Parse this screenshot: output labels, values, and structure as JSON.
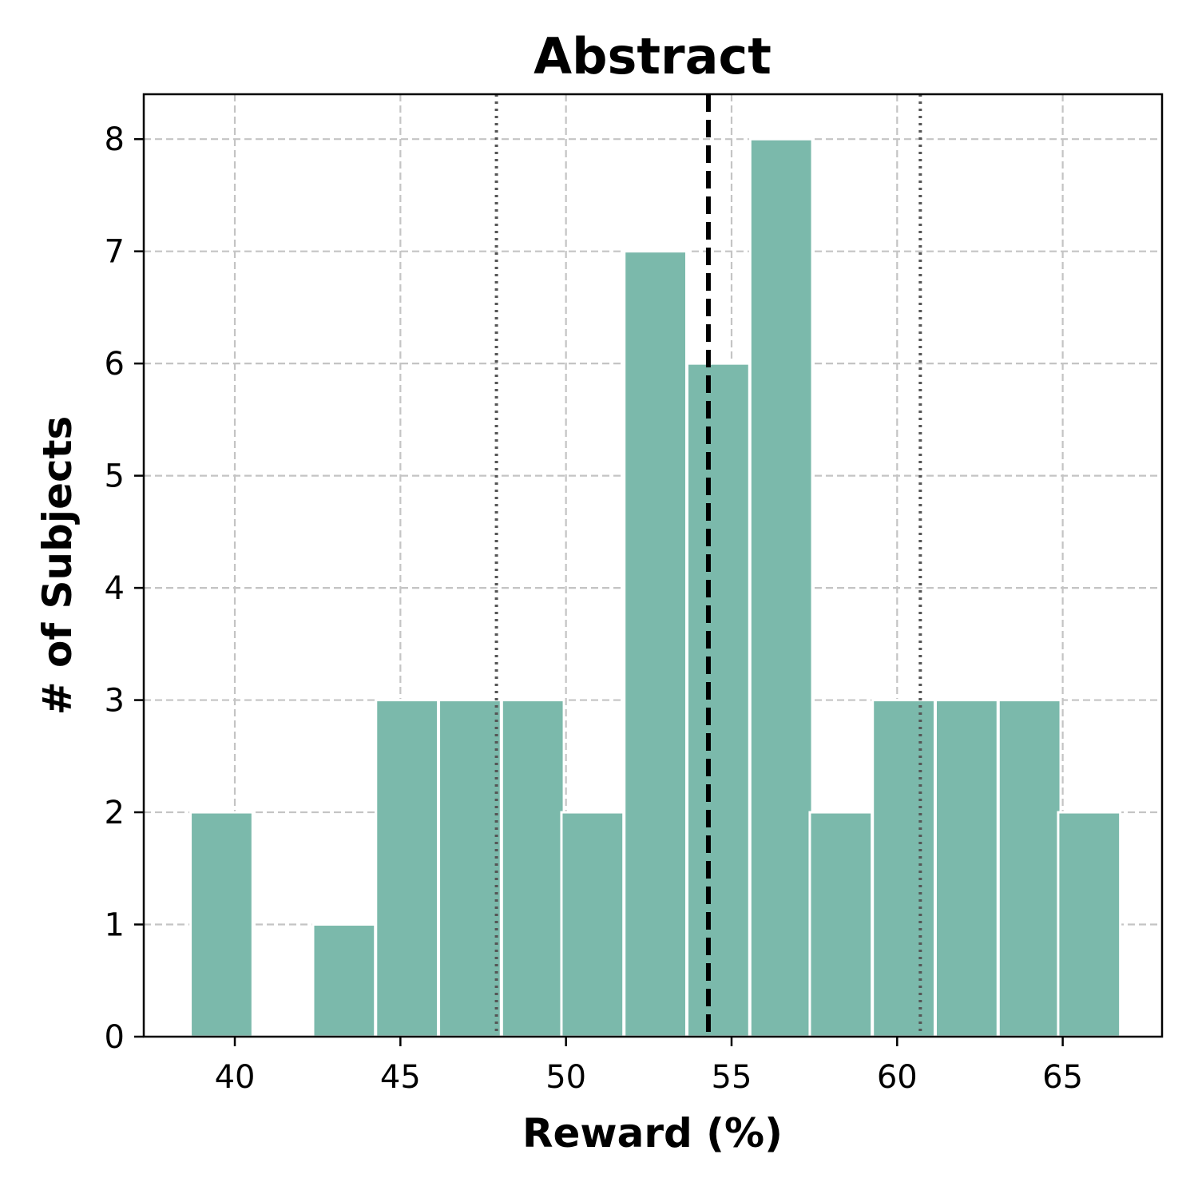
{
  "chart_data": {
    "type": "bar",
    "title": "Abstract",
    "xlabel": "Reward (%)",
    "ylabel": "# of Subjects",
    "xlim": [
      37.25,
      68.0
    ],
    "ylim": [
      0,
      8.4
    ],
    "xticks": [
      40,
      45,
      50,
      55,
      60,
      65
    ],
    "yticks": [
      0,
      1,
      2,
      3,
      4,
      5,
      6,
      7,
      8
    ],
    "grid": true,
    "bin_width": 1.875,
    "bins": [
      {
        "x": 39.6,
        "count": 2
      },
      {
        "x": 41.5,
        "count": 0
      },
      {
        "x": 43.3,
        "count": 1
      },
      {
        "x": 45.2,
        "count": 3
      },
      {
        "x": 47.1,
        "count": 3
      },
      {
        "x": 49.0,
        "count": 3
      },
      {
        "x": 50.8,
        "count": 2
      },
      {
        "x": 52.7,
        "count": 7
      },
      {
        "x": 54.6,
        "count": 6
      },
      {
        "x": 56.5,
        "count": 8
      },
      {
        "x": 58.3,
        "count": 2
      },
      {
        "x": 60.2,
        "count": 3
      },
      {
        "x": 62.1,
        "count": 3
      },
      {
        "x": 64.0,
        "count": 3
      },
      {
        "x": 65.8,
        "count": 2
      }
    ],
    "mean": 54.3,
    "sd_lower": 47.9,
    "sd_upper": 60.7,
    "bar_color": "#7bb9ab"
  }
}
